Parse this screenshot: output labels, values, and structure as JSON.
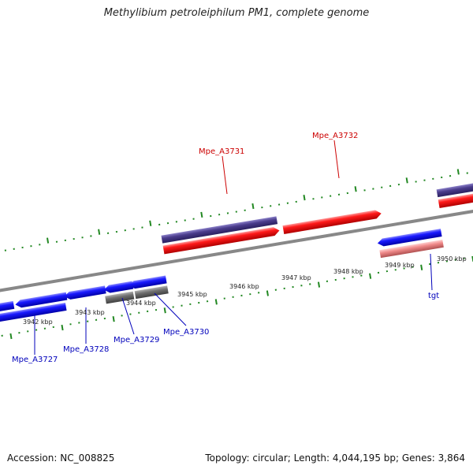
{
  "title": "Methylibium petroleiphilum PM1, complete genome",
  "footer": {
    "accession": "Accession: NC_008825",
    "info": "Topology: circular; Length: 4,044,195 bp; Genes: 3,864"
  },
  "scale_labels": [
    "3942 kbp",
    "3943 kbp",
    "3944 kbp",
    "3945 kbp",
    "3946 kbp",
    "3947 kbp",
    "3948 kbp",
    "3949 kbp",
    "3950 kbp"
  ],
  "gene_labels": [
    {
      "name": "Mpe_A3727",
      "color": "#0000bb"
    },
    {
      "name": "Mpe_A3728",
      "color": "#0000bb"
    },
    {
      "name": "Mpe_A3729",
      "color": "#0000bb"
    },
    {
      "name": "Mpe_A3730",
      "color": "#0000bb"
    },
    {
      "name": "Mpe_A3731",
      "color": "#cc0000"
    },
    {
      "name": "Mpe_A3732",
      "color": "#cc0000"
    },
    {
      "name": "tgt",
      "color": "#0000bb"
    }
  ],
  "colors": {
    "forward_gene": "#ff0000",
    "reverse_gene": "#0000ff",
    "pseudo_gene": "#707070",
    "rna_gene": "#f08a8a",
    "purple_bar": "#4a3c8c",
    "backbone": "#888888",
    "tick": "#228822"
  }
}
